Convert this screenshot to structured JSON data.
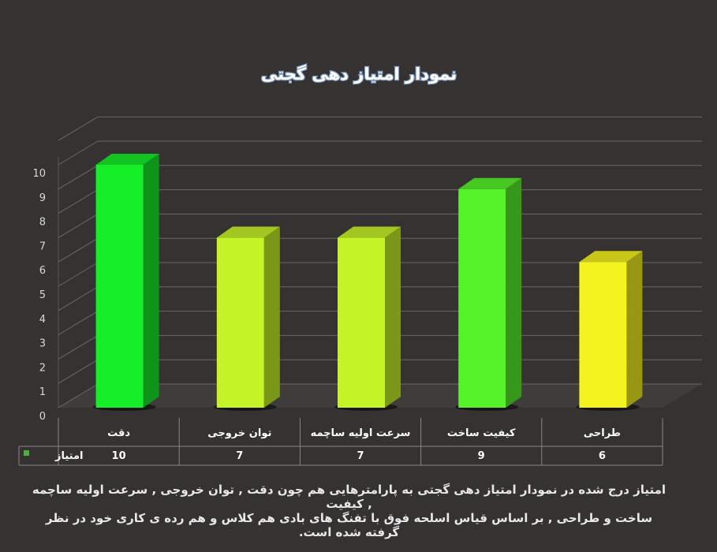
{
  "chart_data": {
    "type": "bar",
    "title": "نمودار امتیاز دهی گجتی",
    "categories": [
      "دقت",
      "توان خروجی",
      "سرعت اولیه ساچمه",
      "کیفیت ساخت",
      "طراحی"
    ],
    "series": [
      {
        "name": "امتیاز",
        "values": [
          10,
          7,
          7,
          9,
          6
        ],
        "colors": [
          "#17ee2a",
          "#c4f327",
          "#c4f327",
          "#57f32a",
          "#f4f31f"
        ]
      }
    ],
    "ylim": [
      0,
      10
    ],
    "yticks": [
      "0",
      "1",
      "2",
      "3",
      "4",
      "5",
      "6",
      "7",
      "8",
      "9",
      "10"
    ],
    "grid": true,
    "data_table": true,
    "legend_marker_color": "#4caf3f"
  },
  "description": {
    "line1": "امتیاز درج شده در نمودار امتیاز دهی گجتی  به پارامترهایی هم چون دقت , توان خروجی , سرعت اولیه ساچمه , کیفیت",
    "line2": "ساخت و طراحی , بر اساس قیاس اسلحه فوق با تفنگ های بادی هم کلاس و هم رده ی کاری خود در نظر گرفته شده است."
  }
}
